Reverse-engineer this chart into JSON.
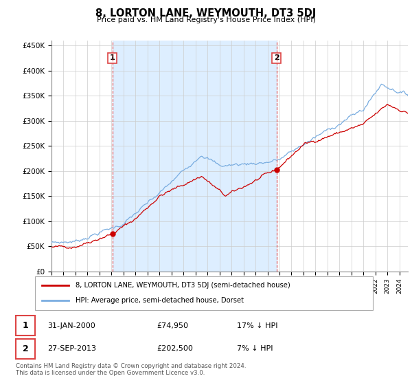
{
  "title": "8, LORTON LANE, WEYMOUTH, DT3 5DJ",
  "subtitle": "Price paid vs. HM Land Registry's House Price Index (HPI)",
  "ylabel_ticks": [
    "£0",
    "£50K",
    "£100K",
    "£150K",
    "£200K",
    "£250K",
    "£300K",
    "£350K",
    "£400K",
    "£450K"
  ],
  "ytick_values": [
    0,
    50000,
    100000,
    150000,
    200000,
    250000,
    300000,
    350000,
    400000,
    450000
  ],
  "ylim": [
    0,
    460000
  ],
  "sale1_x": 2000.083,
  "sale1_y": 74950,
  "sale2_x": 2013.75,
  "sale2_y": 202500,
  "sale1_date_str": "31-JAN-2000",
  "sale2_date_str": "27-SEP-2013",
  "sale1_hpi_pct": "17% ↓ HPI",
  "sale2_hpi_pct": "7% ↓ HPI",
  "sale1_amount": "£74,950",
  "sale2_amount": "£202,500",
  "legend_red": "8, LORTON LANE, WEYMOUTH, DT3 5DJ (semi-detached house)",
  "legend_blue": "HPI: Average price, semi-detached house, Dorset",
  "footnote1": "Contains HM Land Registry data © Crown copyright and database right 2024.",
  "footnote2": "This data is licensed under the Open Government Licence v3.0.",
  "red_color": "#cc0000",
  "blue_color": "#7aade0",
  "shade_color": "#ddeeff",
  "dashed_color": "#dd4444",
  "grid_color": "#cccccc",
  "xlim_start": 1995,
  "xlim_end": 2024.7
}
